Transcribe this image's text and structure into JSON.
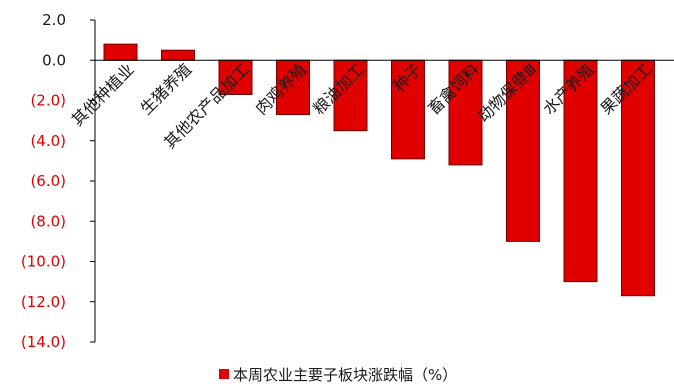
{
  "chart_data": {
    "type": "bar",
    "categories": [
      "其他种植业",
      "生猪养殖",
      "其他农产品加工",
      "肉鸡养殖",
      "粮油加工",
      "种子",
      "畜禽饲料",
      "动物保健Ⅲ",
      "水产养殖",
      "果蔬加工"
    ],
    "series": [
      {
        "name": "本周农业主要子板块涨跌幅（%）",
        "values": [
          0.8,
          0.5,
          -1.7,
          -2.7,
          -3.5,
          -4.9,
          -5.2,
          -9.0,
          -11.0,
          -11.7
        ]
      }
    ],
    "y_tick_labels": [
      "2.0",
      "0.0",
      "(2.0)",
      "(4.0)",
      "(6.0)",
      "(8.0)",
      "(10.0)",
      "(12.0)",
      "(14.0)"
    ],
    "y_ticks": [
      2,
      0,
      -2,
      -4,
      -6,
      -8,
      -10,
      -12,
      -14
    ],
    "ylim": [
      -14,
      2
    ],
    "grid": false,
    "legend_position": "bottom",
    "colors": {
      "bar": "#e00000",
      "bar_stroke": "#6b0000",
      "negative_tick_label": "#e00000",
      "positive_tick_label": "#1a1a1a",
      "axis": "#000000"
    }
  }
}
